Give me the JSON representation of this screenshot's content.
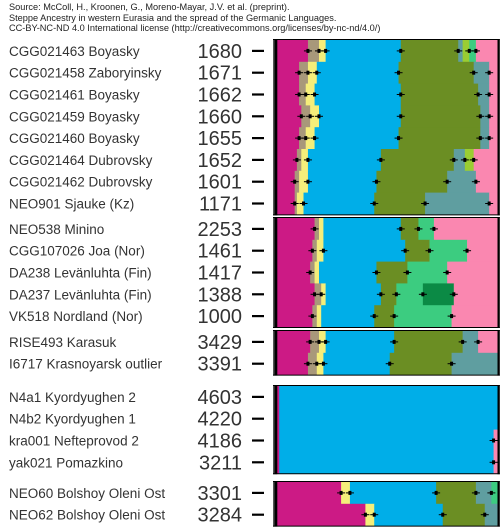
{
  "source": {
    "lines": [
      "Source: McColl, H., Kroonen, G., Moreno-Mayar, J.V. et al. (preprint).",
      "Steppe Ancestry in western Eurasia and the spread of the Germanic Languages.",
      "CC-BY-NC-ND 4.0 International license (http://creativecommons.org/licenses/by-nc-nd/4.0/)"
    ]
  },
  "colors": {
    "magenta": "#cc1a85",
    "taupe": "#a8987a",
    "yellow": "#f5ee7a",
    "blue": "#00aee8",
    "olive": "#6b8e23",
    "teal": "#5f9ea0",
    "lime": "#9acd32",
    "green": "#3ccc80",
    "darkgreen": "#0b8a45",
    "pink": "#fa87b0",
    "frame": "#000000",
    "tick": "#000000",
    "errorbar": "#000000"
  },
  "chart_data": {
    "type": "bar",
    "stacked": true,
    "orientation": "horizontal",
    "xlim": [
      0,
      1
    ],
    "component_order": [
      "magenta",
      "taupe",
      "yellow",
      "blue",
      "olive",
      "teal",
      "lime",
      "green",
      "darkgreen",
      "pink"
    ],
    "groups": [
      {
        "samples": [
          {
            "name": "CGG021463 Boyasky",
            "age": "1680",
            "components": {
              "magenta": 0.14,
              "taupe": 0.05,
              "yellow": 0.03,
              "blue": 0.34,
              "olive": 0.26,
              "teal": 0.02,
              "lime": 0.03,
              "green": 0.03,
              "pink": 0.1
            }
          },
          {
            "name": "CGG021458 Zaboryinsky",
            "age": "1671",
            "components": {
              "magenta": 0.1,
              "taupe": 0.04,
              "yellow": 0.04,
              "blue": 0.37,
              "olive": 0.34,
              "teal": 0.07,
              "pink": 0.04
            }
          },
          {
            "name": "CGG021461 Boyasky",
            "age": "1662",
            "components": {
              "magenta": 0.1,
              "taupe": 0.03,
              "yellow": 0.04,
              "blue": 0.39,
              "olive": 0.35,
              "teal": 0.05,
              "pink": 0.04
            }
          },
          {
            "name": "CGG021459 Boyasky",
            "age": "1660",
            "components": {
              "magenta": 0.11,
              "taupe": 0.04,
              "yellow": 0.04,
              "blue": 0.37,
              "olive": 0.36,
              "teal": 0.04,
              "pink": 0.04
            }
          },
          {
            "name": "CGG021460 Boyasky",
            "age": "1655",
            "components": {
              "magenta": 0.1,
              "taupe": 0.03,
              "yellow": 0.04,
              "blue": 0.38,
              "olive": 0.37,
              "teal": 0.04,
              "pink": 0.04
            }
          },
          {
            "name": "CGG021464 Dubrovsky",
            "age": "1652",
            "components": {
              "magenta": 0.09,
              "taupe": 0.02,
              "yellow": 0.03,
              "blue": 0.33,
              "olive": 0.33,
              "teal": 0.05,
              "lime": 0.04,
              "pink": 0.11
            }
          },
          {
            "name": "CGG021462 Dubrovsky",
            "age": "1601",
            "components": {
              "magenta": 0.08,
              "taupe": 0.02,
              "yellow": 0.04,
              "blue": 0.31,
              "olive": 0.32,
              "teal": 0.13,
              "pink": 0.1
            }
          },
          {
            "name": "NEO901 Sjauke (Kz)",
            "age": "1171",
            "components": {
              "magenta": 0.08,
              "taupe": 0.01,
              "yellow": 0.03,
              "blue": 0.32,
              "olive": 0.23,
              "teal": 0.29,
              "pink": 0.04
            }
          }
        ]
      },
      {
        "samples": [
          {
            "name": "NEO538 Minino",
            "age": "2253",
            "components": {
              "magenta": 0.17,
              "taupe": 0.02,
              "yellow": 0.02,
              "blue": 0.35,
              "olive": 0.08,
              "green": 0.07,
              "pink": 0.29
            }
          },
          {
            "name": "CGG107026 Joa (Nor)",
            "age": "1461",
            "components": {
              "magenta": 0.16,
              "taupe": 0.02,
              "yellow": 0.03,
              "blue": 0.37,
              "olive": 0.11,
              "green": 0.17,
              "pink": 0.14
            }
          },
          {
            "name": "DA238 Levänluhta (Fin)",
            "age": "1417",
            "components": {
              "magenta": 0.15,
              "taupe": 0.02,
              "yellow": 0.02,
              "blue": 0.26,
              "olive": 0.14,
              "green": 0.18,
              "pink": 0.23
            }
          },
          {
            "name": "DA237 Levänluhta (Fin)",
            "age": "1388",
            "components": {
              "magenta": 0.17,
              "taupe": 0.03,
              "yellow": 0.02,
              "blue": 0.25,
              "olive": 0.07,
              "green": 0.12,
              "darkgreen": 0.14,
              "pink": 0.2
            }
          },
          {
            "name": "VK518 Nordland (Nor)",
            "age": "1000",
            "components": {
              "magenta": 0.16,
              "taupe": 0.02,
              "yellow": 0.02,
              "blue": 0.24,
              "olive": 0.09,
              "green": 0.26,
              "pink": 0.21
            }
          }
        ]
      },
      {
        "samples": [
          {
            "name": "RISE493 Karasuk",
            "age": "3429",
            "components": {
              "magenta": 0.15,
              "taupe": 0.04,
              "yellow": 0.03,
              "blue": 0.31,
              "olive": 0.31,
              "teal": 0.07,
              "pink": 0.09
            }
          },
          {
            "name": "I6717 Krasnoyarsk outlier",
            "age": "3391",
            "components": {
              "magenta": 0.14,
              "taupe": 0.04,
              "yellow": 0.03,
              "blue": 0.3,
              "olive": 0.28,
              "teal": 0.21
            }
          }
        ]
      },
      {
        "samples": [
          {
            "name": "N4a1 Kyordyughen 2",
            "age": "4603",
            "components": {
              "magenta": 0.01,
              "blue": 0.99
            }
          },
          {
            "name": "N4b2 Kyordyughen 1",
            "age": "4220",
            "components": {
              "magenta": 0.01,
              "blue": 0.99
            }
          },
          {
            "name": "kra001 Nefteprovod 2",
            "age": "4186",
            "components": {
              "magenta": 0.01,
              "blue": 0.97,
              "pink": 0.02
            }
          },
          {
            "name": "yak021 Pomazkino",
            "age": "3211",
            "components": {
              "magenta": 0.01,
              "blue": 0.97,
              "pink": 0.02
            }
          }
        ]
      },
      {
        "samples": [
          {
            "name": "NEO60 Bolshoy Oleni Ost",
            "age": "3301",
            "components": {
              "magenta": 0.29,
              "yellow": 0.04,
              "blue": 0.39,
              "olive": 0.18,
              "teal": 0.07,
              "green": 0.03
            }
          },
          {
            "name": "NEO62 Bolshoy Oleni Ost",
            "age": "3284",
            "components": {
              "magenta": 0.4,
              "yellow": 0.04,
              "blue": 0.31,
              "olive": 0.19,
              "teal": 0.06
            }
          }
        ]
      }
    ]
  }
}
